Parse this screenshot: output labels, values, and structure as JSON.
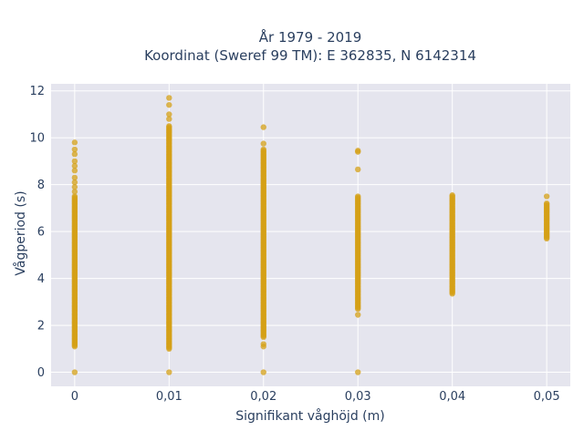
{
  "chart_data": {
    "type": "scatter",
    "title_line1": "År 1979 - 2019",
    "title_line2": "Koordinat (Sweref 99 TM): E 362835, N 6142314",
    "xlabel": "Signifikant våghöjd (m)",
    "ylabel": "Vågperiod (s)",
    "xlim": [
      -0.0025,
      0.0525
    ],
    "ylim": [
      -0.6,
      12.3
    ],
    "x_ticks": [
      "0",
      "0,01",
      "0,02",
      "0,03",
      "0,04",
      "0,05"
    ],
    "y_ticks": [
      "0",
      "2",
      "4",
      "6",
      "8",
      "10",
      "12"
    ],
    "marker_color": "#d4a017",
    "plot_bg": "#e5e5ee",
    "grid": true,
    "series": [
      {
        "x": 0,
        "ranges": [
          [
            1.1,
            7.5
          ]
        ],
        "points": [
          0,
          7.7,
          7.9,
          8.1,
          8.3,
          8.6,
          8.8,
          9.0,
          9.3,
          9.5,
          9.8
        ]
      },
      {
        "x": 0.01,
        "ranges": [
          [
            1.0,
            10.5
          ]
        ],
        "points": [
          0,
          10.8,
          11.0,
          11.4,
          11.7
        ]
      },
      {
        "x": 0.02,
        "ranges": [
          [
            1.5,
            9.5
          ]
        ],
        "points": [
          0,
          1.1,
          1.2,
          9.75,
          10.45
        ]
      },
      {
        "x": 0.03,
        "ranges": [
          [
            2.7,
            7.5
          ]
        ],
        "points": [
          0,
          2.45,
          8.65,
          9.4,
          9.45
        ]
      },
      {
        "x": 0.04,
        "ranges": [
          [
            3.35,
            7.55
          ]
        ],
        "points": []
      },
      {
        "x": 0.05,
        "ranges": [
          [
            5.7,
            7.2
          ]
        ],
        "points": [
          7.5
        ]
      }
    ]
  }
}
